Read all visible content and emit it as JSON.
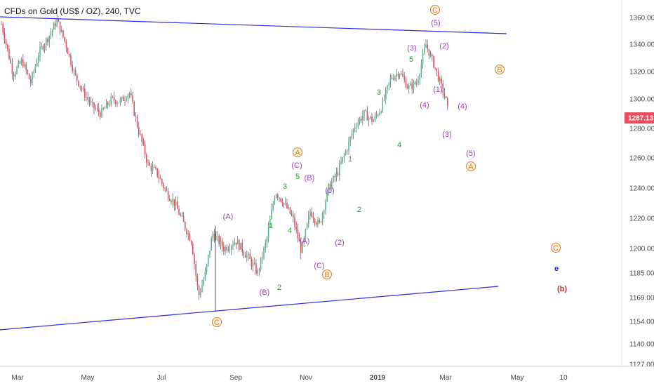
{
  "chart_data": {
    "type": "candlestick",
    "title": "CFDs on Gold (US$ / OZ), 240, TVC",
    "ylim": [
      1125,
      1375
    ],
    "y_axis_side": "right",
    "grid": false,
    "y_ticks": [
      1360,
      1340,
      1320,
      1300,
      1280,
      1260,
      1240,
      1220,
      1200,
      1185,
      1169,
      1154,
      1140,
      1127
    ],
    "x_ticks": [
      "Mar",
      "May",
      "Jul",
      "Sep",
      "Nov",
      "2019",
      "Mar",
      "May",
      "10"
    ],
    "last_price": 1287.13,
    "price_path": [
      [
        "Mar",
        1355
      ],
      [
        "Mar",
        1318
      ],
      [
        "Mar",
        1328
      ],
      [
        "Mar",
        1312
      ],
      [
        "Apr",
        1335
      ],
      [
        "Apr",
        1345
      ],
      [
        "Apr",
        1358
      ],
      [
        "Apr",
        1340
      ],
      [
        "May",
        1318
      ],
      [
        "May",
        1305
      ],
      [
        "May",
        1295
      ],
      [
        "May",
        1290
      ],
      [
        "Jun",
        1300
      ],
      [
        "Jun",
        1298
      ],
      [
        "Jun",
        1305
      ],
      [
        "Jun",
        1280
      ],
      [
        "Jul",
        1255
      ],
      [
        "Jul",
        1250
      ],
      [
        "Jul",
        1238
      ],
      [
        "Jul",
        1230
      ],
      [
        "Aug",
        1215
      ],
      [
        "Aug",
        1205
      ],
      [
        "Aug",
        1170
      ],
      [
        "Aug",
        1185
      ],
      [
        "Aug",
        1210
      ],
      [
        "Sep",
        1200
      ],
      [
        "Sep",
        1205
      ],
      [
        "Sep",
        1195
      ],
      [
        "Oct",
        1185
      ],
      [
        "Oct",
        1205
      ],
      [
        "Oct",
        1238
      ],
      [
        "Oct",
        1230
      ],
      [
        "Nov",
        1220
      ],
      [
        "Nov",
        1198
      ],
      [
        "Nov",
        1225
      ],
      [
        "Nov",
        1215
      ],
      [
        "Dec",
        1240
      ],
      [
        "Dec",
        1250
      ],
      [
        "Dec",
        1265
      ],
      [
        "Dec",
        1282
      ],
      [
        "Jan",
        1290
      ],
      [
        "Jan",
        1285
      ],
      [
        "Jan",
        1295
      ],
      [
        "Jan",
        1315
      ],
      [
        "Feb",
        1320
      ],
      [
        "Feb",
        1308
      ],
      [
        "Feb",
        1312
      ],
      [
        "Feb",
        1340
      ],
      [
        "Mar",
        1325
      ],
      [
        "Mar",
        1300
      ],
      [
        "Mar",
        1287
      ]
    ],
    "trendlines": [
      {
        "name": "upper-channel",
        "color": "#2c2cdc",
        "from": [
          "Mar",
          1360
        ],
        "to": [
          "May",
          1348
        ]
      },
      {
        "name": "lower-channel",
        "color": "#2c2cdc",
        "from": [
          "Mar",
          1148
        ],
        "to": [
          "May",
          1175
        ]
      }
    ],
    "annotations": [
      {
        "text": "C",
        "circled": true,
        "color": "#d4822a",
        "x": "Aug",
        "y": 1152
      },
      {
        "text": "(A)",
        "color": "#9b45c8",
        "x": "Aug",
        "y": 1224
      },
      {
        "text": "(B)",
        "color": "#9b45c8",
        "x": "Sep",
        "y": 1176
      },
      {
        "text": "1",
        "color": "#2ca02c",
        "x": "Sep",
        "y": 1217
      },
      {
        "text": "2",
        "color": "#2ca02c",
        "x": "Oct",
        "y": 1180
      },
      {
        "text": "3",
        "color": "#2ca02c",
        "x": "Oct",
        "y": 1247
      },
      {
        "text": "4",
        "color": "#2ca02c",
        "x": "Oct",
        "y": 1212
      },
      {
        "text": "5",
        "color": "#2ca02c",
        "x": "Oct",
        "y": 1255
      },
      {
        "text": "(C)",
        "color": "#9b45c8",
        "x": "Oct",
        "y": 1262
      },
      {
        "text": "A",
        "circled": true,
        "color": "#d4822a",
        "x": "Oct",
        "y": 1269
      },
      {
        "text": "(B)",
        "color": "#9b45c8",
        "x": "Nov",
        "y": 1253
      },
      {
        "text": "(A)",
        "color": "#9b45c8",
        "x": "Nov",
        "y": 1205
      },
      {
        "text": "(C)",
        "color": "#9b45c8",
        "x": "Nov",
        "y": 1188
      },
      {
        "text": "B",
        "circled": true,
        "color": "#d4822a",
        "x": "Nov",
        "y": 1180
      },
      {
        "text": "(1)",
        "color": "#9b45c8",
        "x": "Nov",
        "y": 1243
      },
      {
        "text": "(2)",
        "color": "#9b45c8",
        "x": "Dec",
        "y": 1204
      },
      {
        "text": "1",
        "color": "#2ca02c",
        "x": "Dec",
        "y": 1257
      },
      {
        "text": "2",
        "color": "#2ca02c",
        "x": "Dec",
        "y": 1228
      },
      {
        "text": "3",
        "color": "#2ca02c",
        "x": "Jan",
        "y": 1306
      },
      {
        "text": "4",
        "color": "#2ca02c",
        "x": "Jan",
        "y": 1271
      },
      {
        "text": "5",
        "color": "#2ca02c",
        "x": "Feb",
        "y": 1330
      },
      {
        "text": "(3)",
        "color": "#9b45c8",
        "x": "Feb",
        "y": 1337
      },
      {
        "text": "(4)",
        "color": "#9b45c8",
        "x": "Feb",
        "y": 1297
      },
      {
        "text": "(5)",
        "color": "#9b45c8",
        "x": "Feb",
        "y": 1354
      },
      {
        "text": "C",
        "circled": true,
        "color": "#d4822a",
        "x": "Feb",
        "y": 1366
      },
      {
        "text": "(2)",
        "color": "#9b45c8",
        "x": "Mar",
        "y": 1339
      },
      {
        "text": "(1)",
        "color": "#9b45c8",
        "x": "Mar",
        "y": 1308
      },
      {
        "text": "(3)",
        "color": "#9b45c8",
        "x": "Mar",
        "y": 1277
      },
      {
        "text": "(4)",
        "color": "#9b45c8",
        "x": "Mar",
        "y": 1297
      },
      {
        "text": "B",
        "circled": true,
        "color": "#d4822a",
        "x": "Apr",
        "y": 1322
      },
      {
        "text": "(5)",
        "color": "#9b45c8",
        "x": "Mar",
        "y": 1263
      },
      {
        "text": "A",
        "circled": true,
        "color": "#d4822a",
        "x": "Mar",
        "y": 1255
      },
      {
        "text": "C",
        "circled": true,
        "color": "#d4822a",
        "x": "May",
        "y": 1200
      },
      {
        "text": "e",
        "color": "#1a2fd1",
        "bold": true,
        "x": "May",
        "y": 1187
      },
      {
        "text": "(b)",
        "color": "#d1232a",
        "bold": true,
        "x": "May",
        "y": 1174
      }
    ]
  }
}
